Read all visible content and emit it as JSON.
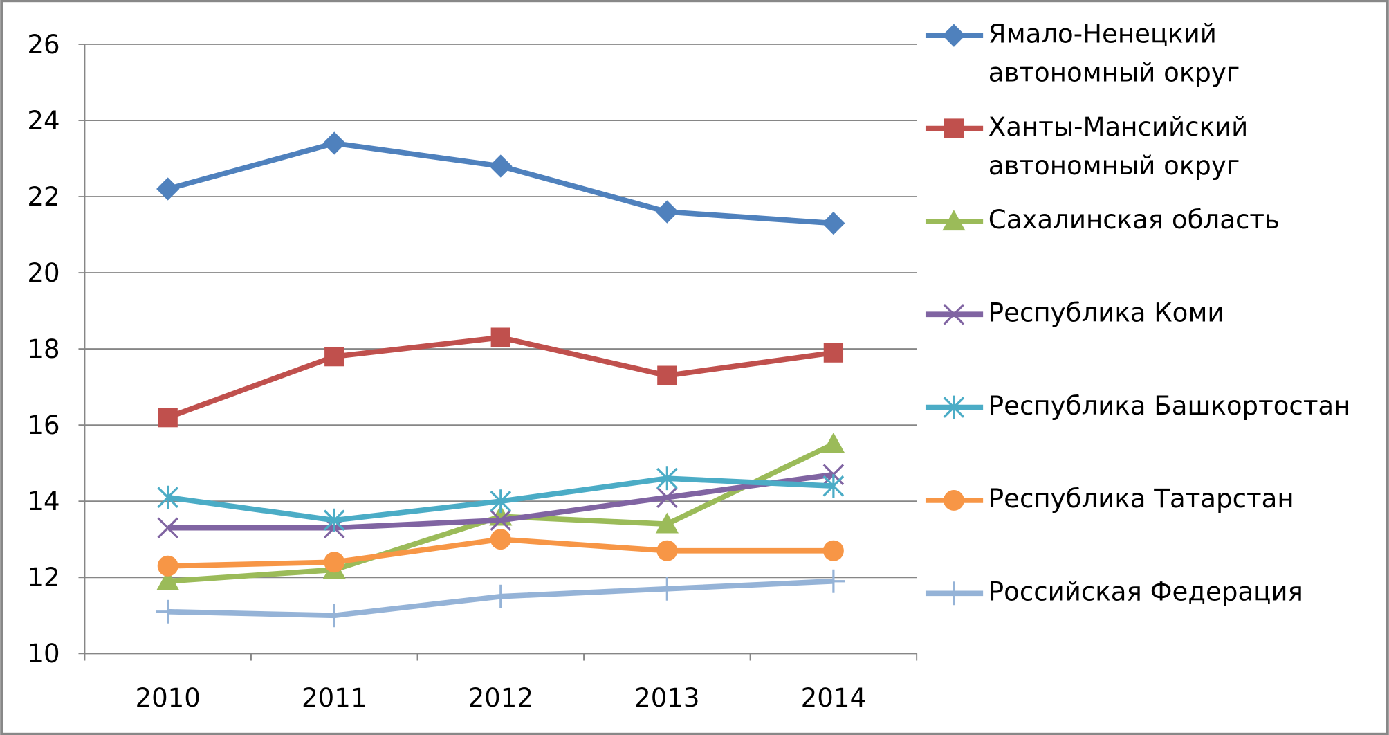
{
  "chart_data": {
    "type": "line",
    "categories": [
      "2010",
      "2011",
      "2012",
      "2013",
      "2014"
    ],
    "ylim": [
      10,
      26
    ],
    "yticks": [
      10,
      12,
      14,
      16,
      18,
      20,
      22,
      24,
      26
    ],
    "grid": true,
    "legend": "right",
    "series": [
      {
        "name": "Ямало-Ненецкий автономный округ",
        "color": "#4f81bd",
        "marker": "diamond",
        "values": [
          22.2,
          23.4,
          22.8,
          21.6,
          21.3
        ]
      },
      {
        "name": "Ханты-Мансийский автономный округ",
        "color": "#c0504d",
        "marker": "square",
        "values": [
          16.2,
          17.8,
          18.3,
          17.3,
          17.9
        ]
      },
      {
        "name": "Сахалинская область",
        "color": "#9bbb59",
        "marker": "triangle",
        "values": [
          11.9,
          12.2,
          13.6,
          13.4,
          15.5
        ]
      },
      {
        "name": "Республика Коми",
        "color": "#8064a2",
        "marker": "x",
        "values": [
          13.3,
          13.3,
          13.5,
          14.1,
          14.7
        ]
      },
      {
        "name": "Республика Башкортостан",
        "color": "#4bacc6",
        "marker": "star",
        "values": [
          14.1,
          13.5,
          14.0,
          14.6,
          14.4
        ]
      },
      {
        "name": "Республика Татарстан",
        "color": "#f79646",
        "marker": "circle",
        "values": [
          12.3,
          12.4,
          13.0,
          12.7,
          12.7
        ]
      },
      {
        "name": "Российская Федерация",
        "color": "#95b3d7",
        "marker": "plus",
        "values": [
          11.1,
          11.0,
          11.5,
          11.7,
          11.9
        ]
      }
    ]
  }
}
